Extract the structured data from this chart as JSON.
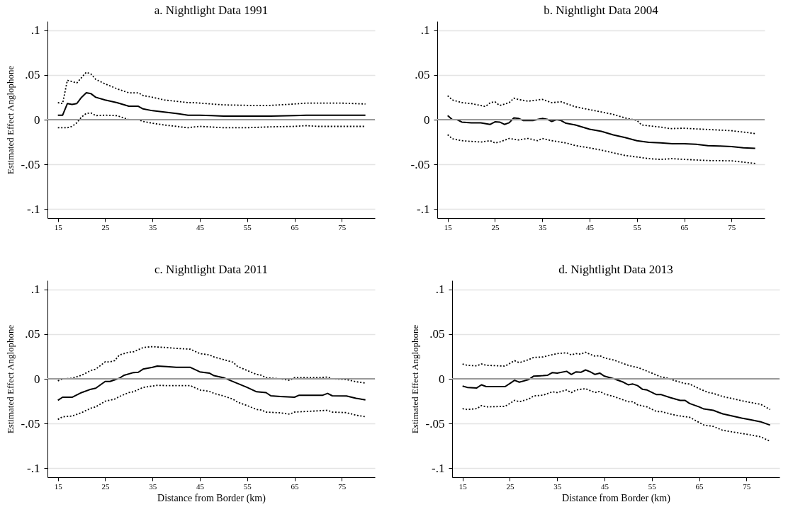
{
  "chart_data": [
    {
      "type": "line",
      "title": "a. Nightlight Data 1991",
      "ylabel": "Estimated Effect Anglophone",
      "xlim": [
        12.8,
        82
      ],
      "ylim": [
        -0.11,
        0.11
      ],
      "xticks": [
        15,
        25,
        35,
        45,
        55,
        65,
        75
      ],
      "yticks": [
        {
          "value": -0.1,
          "label": "-.1"
        },
        {
          "value": -0.05,
          "label": "-.05"
        },
        {
          "value": 0,
          "label": "0"
        },
        {
          "value": 0.05,
          "label": ".05"
        },
        {
          "value": 0.1,
          "label": ".1"
        }
      ],
      "grid": "y",
      "marker": "none",
      "ref_lines": [
        {
          "axis": "y",
          "value": 0,
          "color": "#9a9a9a"
        }
      ],
      "series": [
        {
          "color": "#000000",
          "line_style": "solid",
          "x": [
            15,
            16,
            17,
            18,
            19,
            20,
            21,
            22,
            23,
            25,
            27.5,
            30,
            32,
            33,
            35,
            37.5,
            40,
            42.5,
            45,
            47.5,
            50,
            55,
            60,
            65,
            67.5,
            70,
            75,
            80
          ],
          "values": [
            0.005,
            0.005,
            0.018,
            0.017,
            0.018,
            0.025,
            0.03,
            0.029,
            0.025,
            0.022,
            0.019,
            0.015,
            0.015,
            0.012,
            0.01,
            0.0085,
            0.007,
            0.005,
            0.005,
            0.0045,
            0.004,
            0.004,
            0.004,
            0.0045,
            0.005,
            0.005,
            0.005,
            0.005
          ]
        },
        {
          "color": "#000000",
          "line_style": "dotted",
          "x": [
            15,
            16,
            17,
            19,
            21,
            22,
            23,
            25,
            27.5,
            30,
            32,
            33,
            35,
            37.5,
            40,
            42.5,
            44,
            45,
            50,
            55,
            60,
            65,
            67.5,
            70,
            75,
            80
          ],
          "values": [
            0.019,
            0.018,
            0.044,
            0.041,
            0.053,
            0.051,
            0.045,
            0.04,
            0.0345,
            0.03,
            0.03,
            0.027,
            0.025,
            0.022,
            0.0205,
            0.019,
            0.019,
            0.0185,
            0.0165,
            0.016,
            0.016,
            0.0175,
            0.0185,
            0.0185,
            0.0185,
            0.0175
          ]
        },
        {
          "color": "#000000",
          "line_style": "dotted",
          "x": [
            15,
            17,
            18,
            19,
            20,
            21,
            22,
            23,
            25,
            27.5,
            30,
            32,
            33,
            35,
            37.5,
            40,
            42.5,
            45,
            50,
            55,
            60,
            65,
            67.5,
            70,
            80
          ],
          "values": [
            -0.009,
            -0.009,
            -0.0075,
            -0.0035,
            0.003,
            0.007,
            0.0075,
            0.0045,
            0.005,
            0.0045,
            0,
            0,
            -0.002,
            -0.004,
            -0.006,
            -0.0075,
            -0.009,
            -0.0075,
            -0.009,
            -0.009,
            -0.008,
            -0.0075,
            -0.0067,
            -0.0075,
            -0.0075
          ]
        }
      ]
    },
    {
      "type": "line",
      "title": "b. Nightlight Data 2004",
      "xlim": [
        12.8,
        82
      ],
      "ylim": [
        -0.11,
        0.11
      ],
      "xticks": [
        15,
        25,
        35,
        45,
        55,
        65,
        75
      ],
      "yticks": [
        {
          "value": -0.1,
          "label": "-.1"
        },
        {
          "value": -0.05,
          "label": "-.05"
        },
        {
          "value": 0,
          "label": "0"
        },
        {
          "value": 0.05,
          "label": ".05"
        },
        {
          "value": 0.1,
          "label": ".1"
        }
      ],
      "grid": "y",
      "marker": "none",
      "ref_lines": [
        {
          "axis": "y",
          "value": 0,
          "color": "#9a9a9a"
        }
      ],
      "series": [
        {
          "color": "#000000",
          "line_style": "solid",
          "x": [
            15,
            16,
            17,
            18,
            20,
            22,
            24,
            25,
            26,
            27,
            28,
            29,
            30,
            31,
            33,
            35,
            36,
            37,
            38,
            39,
            40,
            42,
            43,
            45,
            47.5,
            50,
            52.5,
            55,
            57.5,
            60,
            62.5,
            65,
            67.5,
            70,
            72.5,
            75,
            77.5,
            80
          ],
          "values": [
            0.0045,
            0,
            0,
            -0.0027,
            -0.0035,
            -0.0035,
            -0.0053,
            -0.0024,
            -0.0027,
            -0.0053,
            -0.0035,
            0.002,
            0.0013,
            -0.001,
            -0.001,
            0.0013,
            0.0005,
            -0.002,
            0,
            -0.001,
            -0.004,
            -0.006,
            -0.0075,
            -0.0107,
            -0.013,
            -0.017,
            -0.02,
            -0.0235,
            -0.0254,
            -0.026,
            -0.027,
            -0.027,
            -0.0275,
            -0.029,
            -0.0294,
            -0.03,
            -0.0315,
            -0.032
          ]
        },
        {
          "color": "#000000",
          "line_style": "dotted",
          "x": [
            15,
            16,
            18,
            20,
            23,
            24,
            25,
            26,
            28,
            29,
            30,
            32,
            35,
            37,
            39,
            40,
            42,
            45,
            47.5,
            50,
            52.5,
            55,
            56,
            60,
            62,
            65,
            70,
            75,
            80
          ],
          "values": [
            0.0267,
            0.022,
            0.019,
            0.018,
            0.0147,
            0.019,
            0.02,
            0.0158,
            0.019,
            0.024,
            0.0225,
            0.0206,
            0.0227,
            0.019,
            0.02,
            0.018,
            0.0144,
            0.0112,
            0.0086,
            0.0059,
            0.0019,
            -0.0008,
            -0.006,
            -0.0083,
            -0.01,
            -0.0096,
            -0.011,
            -0.0123,
            -0.0155
          ]
        },
        {
          "color": "#000000",
          "line_style": "dotted",
          "x": [
            15,
            16,
            18,
            20,
            22,
            24,
            25,
            26,
            28,
            30,
            32,
            34,
            35,
            37,
            40,
            42,
            45,
            47.5,
            50,
            52.5,
            55,
            57.5,
            60,
            62.5,
            65,
            70,
            75,
            80
          ],
          "values": [
            -0.0168,
            -0.0214,
            -0.0235,
            -0.0243,
            -0.025,
            -0.0235,
            -0.026,
            -0.025,
            -0.021,
            -0.0227,
            -0.021,
            -0.0235,
            -0.021,
            -0.0235,
            -0.026,
            -0.029,
            -0.0316,
            -0.034,
            -0.037,
            -0.04,
            -0.0417,
            -0.0436,
            -0.0444,
            -0.0436,
            -0.0444,
            -0.0457,
            -0.046,
            -0.049
          ]
        }
      ]
    },
    {
      "type": "line",
      "title": "c. Nightlight Data 2011",
      "xlabel": "Distance from Border (km)",
      "ylabel": "Estimated Effect Anglophone",
      "xlim": [
        12.8,
        82
      ],
      "ylim": [
        -0.11,
        0.11
      ],
      "xticks": [
        15,
        25,
        35,
        45,
        55,
        65,
        75
      ],
      "yticks": [
        {
          "value": -0.1,
          "label": "-.1"
        },
        {
          "value": -0.05,
          "label": "-.05"
        },
        {
          "value": 0,
          "label": "0"
        },
        {
          "value": 0.05,
          "label": ".05"
        },
        {
          "value": 0.1,
          "label": ".1"
        }
      ],
      "grid": "y",
      "marker": "none",
      "ref_lines": [
        {
          "axis": "y",
          "value": 0,
          "color": "#9a9a9a"
        }
      ],
      "series": [
        {
          "color": "#000000",
          "line_style": "solid",
          "x": [
            15,
            16,
            18,
            20,
            22,
            23,
            25,
            26,
            28,
            29,
            31,
            32,
            33,
            35,
            36,
            38,
            40,
            43,
            45,
            47,
            48,
            50,
            51,
            53,
            55,
            57,
            59,
            60,
            62,
            65,
            66,
            68,
            71,
            72,
            73,
            76,
            78,
            80
          ],
          "values": [
            -0.024,
            -0.0206,
            -0.0206,
            -0.0154,
            -0.0116,
            -0.0105,
            -0.003,
            -0.003,
            0.0006,
            0.004,
            0.007,
            0.0073,
            0.0108,
            0.0128,
            0.0142,
            0.0137,
            0.0128,
            0.0128,
            0.0078,
            0.0064,
            0.0035,
            0.0012,
            -0.0009,
            -0.0052,
            -0.0096,
            -0.0145,
            -0.0154,
            -0.019,
            -0.0198,
            -0.0206,
            -0.0183,
            -0.0183,
            -0.0183,
            -0.0163,
            -0.019,
            -0.0192,
            -0.0218,
            -0.0235
          ]
        },
        {
          "color": "#000000",
          "line_style": "dotted",
          "x": [
            15,
            16,
            18,
            20,
            22,
            23,
            25,
            26,
            27,
            28,
            30,
            31,
            33,
            35,
            36,
            38,
            40,
            43,
            45,
            47,
            48,
            50,
            52,
            53,
            55,
            57,
            58,
            59,
            62,
            64,
            65,
            70,
            72,
            73,
            76,
            78,
            80
          ],
          "values": [
            -0.0023,
            0,
            0.0006,
            0.004,
            0.0093,
            0.0108,
            0.019,
            0.0189,
            0.0203,
            0.0267,
            0.0297,
            0.0302,
            0.0349,
            0.036,
            0.0355,
            0.0349,
            0.034,
            0.0331,
            0.0282,
            0.0267,
            0.0244,
            0.0215,
            0.0186,
            0.0137,
            0.0093,
            0.0049,
            0.004,
            0.0012,
            0,
            -0.0017,
            0.0012,
            0.0012,
            0.002,
            0,
            -0.0009,
            -0.0032,
            -0.0047
          ]
        },
        {
          "color": "#000000",
          "line_style": "dotted",
          "x": [
            15,
            16,
            18,
            20,
            22,
            23,
            25,
            27,
            28,
            30,
            31,
            33,
            35,
            36,
            38,
            43,
            45,
            47,
            48,
            50,
            52,
            53,
            55,
            57,
            58,
            59,
            62,
            64,
            65,
            70,
            72,
            73,
            76,
            78,
            80
          ],
          "values": [
            -0.0454,
            -0.0424,
            -0.0416,
            -0.0378,
            -0.0328,
            -0.0314,
            -0.025,
            -0.0227,
            -0.0198,
            -0.0154,
            -0.0145,
            -0.0096,
            -0.0081,
            -0.0073,
            -0.0076,
            -0.0076,
            -0.0125,
            -0.014,
            -0.0163,
            -0.0192,
            -0.0227,
            -0.0262,
            -0.0299,
            -0.0343,
            -0.0349,
            -0.0372,
            -0.038,
            -0.0395,
            -0.0372,
            -0.0358,
            -0.0352,
            -0.0372,
            -0.0378,
            -0.0407,
            -0.0424
          ]
        }
      ]
    },
    {
      "type": "line",
      "title": "d. Nightlight Data 2013",
      "xlabel": "Distance from Border (km)",
      "ylabel": "Estimated Effect Anglophone",
      "xlim": [
        12.8,
        82
      ],
      "ylim": [
        -0.11,
        0.11
      ],
      "xticks": [
        15,
        25,
        35,
        45,
        55,
        65,
        75
      ],
      "yticks": [
        {
          "value": -0.1,
          "label": "-.1"
        },
        {
          "value": -0.05,
          "label": "-.05"
        },
        {
          "value": 0,
          "label": "0"
        },
        {
          "value": 0.05,
          "label": ".05"
        },
        {
          "value": 0.1,
          "label": ".1"
        }
      ],
      "grid": "y",
      "marker": "none",
      "ref_lines": [
        {
          "axis": "y",
          "value": 0,
          "color": "#9a9a9a"
        }
      ],
      "series": [
        {
          "color": "#000000",
          "line_style": "solid",
          "x": [
            15,
            16,
            18,
            19,
            20,
            24,
            25,
            26,
            27,
            29,
            30,
            32,
            33,
            34,
            35,
            37,
            38,
            39,
            40,
            41,
            42,
            43,
            44,
            45,
            47,
            49,
            50,
            51,
            52,
            53,
            54,
            56,
            57,
            59,
            61,
            62,
            63,
            65,
            66,
            68,
            70,
            72,
            74,
            76,
            78,
            80
          ],
          "values": [
            -0.0081,
            -0.0096,
            -0.0102,
            -0.0067,
            -0.0087,
            -0.0087,
            -0.0052,
            -0.0017,
            -0.0038,
            -0.0009,
            0.0029,
            0.0035,
            0.004,
            0.007,
            0.0064,
            0.0084,
            0.0049,
            0.0078,
            0.0073,
            0.0099,
            0.0078,
            0.0049,
            0.0064,
            0.0029,
            0,
            -0.0038,
            -0.0067,
            -0.0058,
            -0.0076,
            -0.0116,
            -0.0125,
            -0.0177,
            -0.0177,
            -0.0212,
            -0.0241,
            -0.0241,
            -0.0276,
            -0.0314,
            -0.0337,
            -0.0352,
            -0.0392,
            -0.0416,
            -0.0439,
            -0.0459,
            -0.048,
            -0.0517
          ]
        },
        {
          "color": "#000000",
          "line_style": "dotted",
          "x": [
            15,
            16,
            18,
            19,
            20,
            24,
            26,
            27,
            29,
            30,
            32,
            35,
            37,
            38,
            39,
            40,
            41,
            42,
            43,
            44,
            45,
            47,
            50,
            51,
            52,
            55,
            57,
            58,
            60,
            62,
            63,
            65,
            67,
            68,
            70,
            75,
            78,
            80
          ],
          "values": [
            0.0166,
            0.0151,
            0.0145,
            0.0166,
            0.0151,
            0.0142,
            0.0203,
            0.018,
            0.0215,
            0.0238,
            0.0244,
            0.0282,
            0.0291,
            0.0267,
            0.0282,
            0.0276,
            0.0297,
            0.0273,
            0.0253,
            0.0259,
            0.0233,
            0.0209,
            0.0151,
            0.0137,
            0.0128,
            0.0064,
            0.002,
            0.0012,
            -0.0023,
            -0.0052,
            -0.0058,
            -0.011,
            -0.0154,
            -0.0163,
            -0.0198,
            -0.0256,
            -0.0285,
            -0.0343
          ]
        },
        {
          "color": "#000000",
          "line_style": "dotted",
          "x": [
            15,
            16,
            18,
            19,
            20,
            24,
            26,
            27,
            29,
            30,
            32,
            34,
            35,
            37,
            38,
            39,
            41,
            43,
            44,
            45,
            47,
            50,
            51,
            52,
            54,
            56,
            57,
            60,
            62,
            63,
            65,
            66,
            68,
            70,
            75,
            78,
            80
          ],
          "values": [
            -0.0334,
            -0.0343,
            -0.0334,
            -0.0299,
            -0.0314,
            -0.0308,
            -0.0241,
            -0.0256,
            -0.0227,
            -0.0192,
            -0.0183,
            -0.0145,
            -0.0154,
            -0.0125,
            -0.0154,
            -0.0125,
            -0.011,
            -0.0154,
            -0.014,
            -0.0169,
            -0.0198,
            -0.0256,
            -0.0256,
            -0.0291,
            -0.0314,
            -0.0366,
            -0.0366,
            -0.0407,
            -0.0424,
            -0.043,
            -0.0488,
            -0.0517,
            -0.0532,
            -0.0576,
            -0.0619,
            -0.0648,
            -0.0698
          ]
        }
      ]
    }
  ]
}
